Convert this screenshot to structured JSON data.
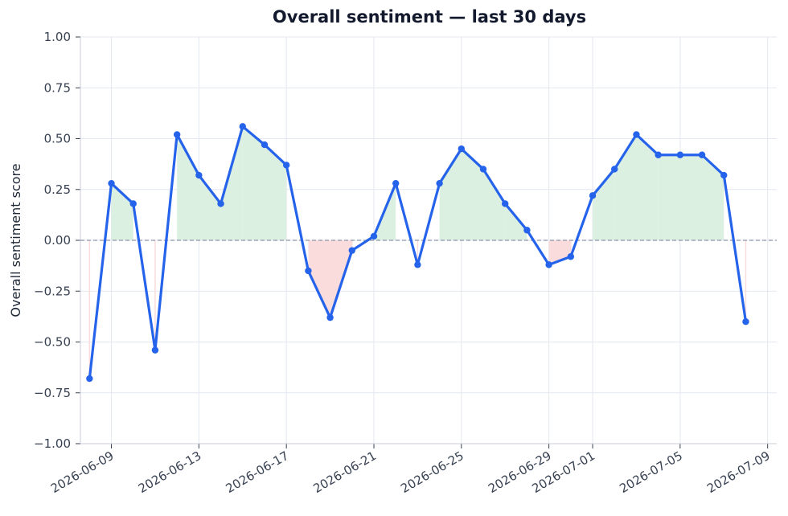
{
  "chart_data": {
    "type": "line",
    "title": "Overall sentiment — last 30 days",
    "xlabel": "",
    "ylabel": "Overall sentiment score",
    "ylim": [
      -1.0,
      1.0
    ],
    "xlim": [
      "2026-06-07T14:00",
      "2026-07-09T10:00"
    ],
    "y_ticks": [
      "1.00",
      "0.75",
      "0.50",
      "0.25",
      "0.00",
      "−0.25",
      "−0.50",
      "−0.75",
      "−1.00"
    ],
    "x_ticks": [
      "2026-06-09",
      "2026-06-13",
      "2026-06-17",
      "2026-06-21",
      "2026-06-25",
      "2026-06-29",
      "2026-07-01",
      "2026-07-05",
      "2026-07-09"
    ],
    "reference_line": 0,
    "grid": true,
    "colors": {
      "line": "#2563eb",
      "positive_fill": "#dcf0e2",
      "negative_fill": "#fadcdc",
      "reference_line": "#8a94a6"
    },
    "series": [
      {
        "x": [
          "2026-06-08",
          "2026-06-09",
          "2026-06-10",
          "2026-06-11",
          "2026-06-12",
          "2026-06-13",
          "2026-06-14",
          "2026-06-15",
          "2026-06-16",
          "2026-06-17",
          "2026-06-18",
          "2026-06-19",
          "2026-06-20",
          "2026-06-21",
          "2026-06-22",
          "2026-06-23",
          "2026-06-24",
          "2026-06-25",
          "2026-06-26",
          "2026-06-27",
          "2026-06-28",
          "2026-06-29",
          "2026-06-30",
          "2026-07-01",
          "2026-07-02",
          "2026-07-03",
          "2026-07-04",
          "2026-07-05",
          "2026-07-06",
          "2026-07-07",
          "2026-07-08"
        ],
        "values": [
          -0.68,
          0.28,
          0.18,
          -0.54,
          0.52,
          0.32,
          0.18,
          0.56,
          0.47,
          0.37,
          -0.15,
          -0.38,
          -0.05,
          0.02,
          0.28,
          -0.12,
          0.28,
          0.45,
          0.35,
          0.18,
          0.05,
          -0.12,
          -0.08,
          0.22,
          0.35,
          0.52,
          0.42,
          0.42,
          0.42,
          0.32,
          -0.4
        ]
      }
    ]
  }
}
